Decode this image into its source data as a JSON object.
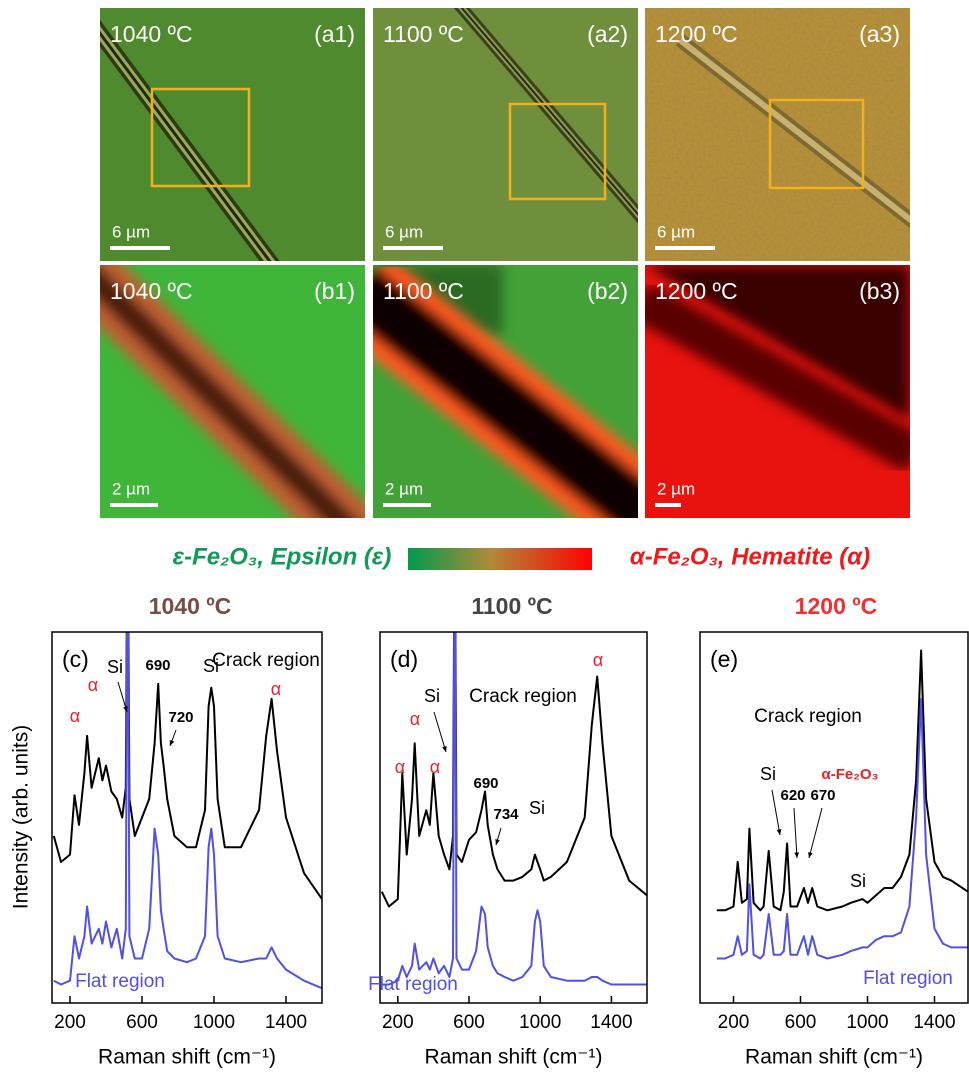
{
  "images": [
    {
      "temperature": "1040 ºC",
      "tag": "(a1)",
      "scale": "6 µm"
    },
    {
      "temperature": "1100 ºC",
      "tag": "(a2)",
      "scale": "6 µm"
    },
    {
      "temperature": "1200 ºC",
      "tag": "(a3)",
      "scale": "6 µm"
    },
    {
      "temperature": "1040 ºC",
      "tag": "(b1)",
      "scale": "2 µm"
    },
    {
      "temperature": "1100 ºC",
      "tag": "(b2)",
      "scale": "2 µm"
    },
    {
      "temperature": "1200 ºC",
      "tag": "(b3)",
      "scale": "2 µm"
    }
  ],
  "colorbar": {
    "left": "ε-Fe₂O₃, Epsilon (ε)",
    "right": "α-Fe₂O₃, Hematite (α)"
  },
  "chart_data": [
    {
      "type": "line",
      "title": "1040 ºC",
      "title_color": "#7a4b44",
      "panel": "(c)",
      "y_label": "Intensity (arb. units)",
      "x_label": "Raman shift (cm⁻¹)",
      "xlim": [
        100,
        1600
      ],
      "ylim": [
        0,
        100
      ],
      "xticks": [
        200,
        600,
        1000,
        1400
      ],
      "x": [
        110,
        150,
        200,
        225,
        250,
        280,
        295,
        320,
        360,
        380,
        400,
        430,
        460,
        490,
        510,
        520,
        530,
        560,
        600,
        640,
        670,
        690,
        705,
        720,
        740,
        780,
        850,
        900,
        950,
        970,
        985,
        1000,
        1020,
        1060,
        1150,
        1250,
        1290,
        1320,
        1350,
        1400,
        1500,
        1600
      ],
      "series": [
        {
          "name": "Crack region",
          "color": "#000000",
          "values": [
            45,
            38,
            40,
            56,
            48,
            62,
            72,
            58,
            66,
            60,
            64,
            57,
            55,
            50,
            58,
            140,
            55,
            45,
            50,
            55,
            70,
            86,
            70,
            64,
            55,
            45,
            42,
            42,
            52,
            80,
            85,
            80,
            55,
            42,
            42,
            52,
            72,
            82,
            68,
            50,
            35,
            28
          ]
        },
        {
          "name": "Flat region",
          "color": "#5050e6",
          "values": [
            6,
            5,
            6,
            18,
            12,
            18,
            26,
            16,
            20,
            16,
            22,
            15,
            20,
            12,
            20,
            140,
            18,
            12,
            12,
            20,
            47,
            40,
            25,
            20,
            14,
            12,
            11,
            12,
            18,
            42,
            47,
            40,
            18,
            12,
            11,
            12,
            12,
            15,
            12,
            9,
            6,
            4
          ]
        }
      ],
      "annotations": [
        {
          "text": "α",
          "color": "#e8202a"
        },
        {
          "text": "α",
          "color": "#e8202a"
        },
        {
          "text": "Si",
          "color": "#000000"
        },
        {
          "text": "690",
          "color": "#000000",
          "bold": true
        },
        {
          "text": "720",
          "color": "#000000",
          "bold": true
        },
        {
          "text": "Si",
          "color": "#000000"
        },
        {
          "text": "α",
          "color": "#e8202a"
        }
      ]
    },
    {
      "type": "line",
      "title": "1100 ºC",
      "title_color": "#444444",
      "panel": "(d)",
      "x_label": "Raman shift (cm⁻¹)",
      "xlim": [
        100,
        1600
      ],
      "ylim": [
        0,
        100
      ],
      "xticks": [
        200,
        600,
        1000,
        1400
      ],
      "x": [
        110,
        150,
        200,
        225,
        250,
        280,
        295,
        320,
        360,
        380,
        400,
        430,
        460,
        490,
        510,
        520,
        530,
        560,
        600,
        640,
        670,
        690,
        705,
        734,
        760,
        800,
        850,
        900,
        950,
        970,
        985,
        1000,
        1020,
        1060,
        1150,
        1250,
        1290,
        1320,
        1350,
        1400,
        1500,
        1600
      ],
      "series": [
        {
          "name": "Crack region",
          "color": "#000000",
          "values": [
            30,
            26,
            28,
            62,
            40,
            55,
            70,
            45,
            52,
            48,
            62,
            45,
            40,
            36,
            45,
            140,
            40,
            38,
            44,
            46,
            52,
            57,
            48,
            40,
            36,
            33,
            33,
            34,
            36,
            40,
            38,
            36,
            33,
            34,
            38,
            50,
            75,
            88,
            70,
            45,
            33,
            29
          ]
        },
        {
          "name": "Flat region",
          "color": "#5050e6",
          "values": [
            5,
            5,
            6,
            10,
            7,
            10,
            16,
            9,
            11,
            9,
            12,
            8,
            10,
            7,
            12,
            140,
            12,
            9,
            9,
            14,
            26,
            24,
            15,
            10,
            8,
            7,
            6,
            7,
            10,
            22,
            25,
            22,
            10,
            7,
            6,
            6,
            7,
            7,
            6,
            5,
            5,
            5
          ]
        }
      ],
      "annotations": [
        {
          "text": "Si",
          "color": "#000000"
        },
        {
          "text": "α",
          "color": "#e8202a"
        },
        {
          "text": "α",
          "color": "#e8202a"
        },
        {
          "text": "α",
          "color": "#e8202a"
        },
        {
          "text": "α",
          "color": "#e8202a"
        },
        {
          "text": "690",
          "color": "#000000",
          "bold": true
        },
        {
          "text": "734",
          "color": "#000000",
          "bold": true
        },
        {
          "text": "Si",
          "color": "#000000"
        }
      ]
    },
    {
      "type": "line",
      "title": "1200 ºC",
      "title_color": "#f03030",
      "panel": "(e)",
      "x_label": "Raman shift (cm⁻¹)",
      "xlim": [
        0,
        1600
      ],
      "ylim": [
        0,
        100
      ],
      "xticks": [
        200,
        600,
        1000,
        1400
      ],
      "x": [
        100,
        150,
        200,
        225,
        250,
        280,
        295,
        320,
        360,
        380,
        410,
        440,
        480,
        500,
        520,
        540,
        580,
        620,
        645,
        670,
        700,
        760,
        850,
        900,
        970,
        1000,
        1050,
        1100,
        1150,
        1200,
        1250,
        1290,
        1320,
        1350,
        1400,
        1450,
        1500,
        1600
      ],
      "series": [
        {
          "name": "Crack region",
          "color": "#000000",
          "values": [
            25,
            25,
            26,
            38,
            27,
            28,
            47,
            27,
            25,
            26,
            41,
            26,
            25,
            30,
            43,
            26,
            26,
            31,
            27,
            31,
            26,
            25,
            26,
            27,
            28,
            27,
            29,
            31,
            31,
            34,
            40,
            60,
            95,
            55,
            38,
            34,
            33,
            30
          ]
        },
        {
          "name": "Flat region",
          "color": "#5050e6",
          "values": [
            12,
            12,
            13,
            18,
            13,
            14,
            32,
            13,
            12,
            13,
            24,
            13,
            13,
            14,
            24,
            13,
            13,
            18,
            13,
            18,
            13,
            12,
            13,
            14,
            15,
            15,
            17,
            18,
            18,
            19,
            26,
            50,
            82,
            40,
            20,
            16,
            15,
            15
          ]
        }
      ],
      "annotations": [
        {
          "text": "Si",
          "color": "#000000"
        },
        {
          "text": "α-Fe₂O₃",
          "color": "#e8202a",
          "bold": true
        },
        {
          "text": "620",
          "color": "#000000",
          "bold": true
        },
        {
          "text": "670",
          "color": "#000000",
          "bold": true
        },
        {
          "text": "Si",
          "color": "#000000"
        }
      ]
    }
  ]
}
